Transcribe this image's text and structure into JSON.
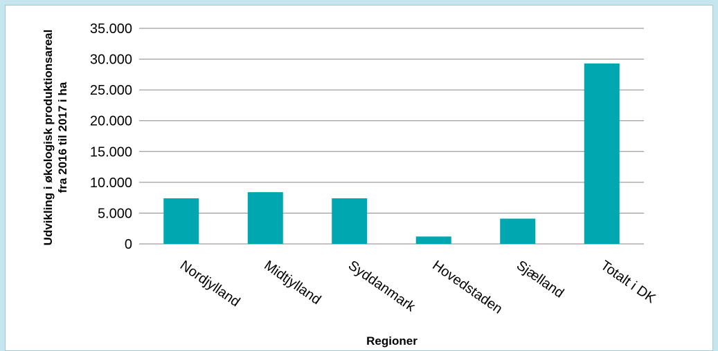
{
  "chart_data": {
    "type": "bar",
    "title": "",
    "xlabel": "Regioner",
    "ylabel_lines": [
      "Udvikling i økologisk produktionsareal",
      "fra 2016 til 2017 i ha"
    ],
    "categories": [
      "Nordjylland",
      "Midtjylland",
      "Syddanmark",
      "Hovedstaden",
      "Sjælland",
      "Totalt i DK"
    ],
    "values": [
      7400,
      8400,
      7400,
      1200,
      4100,
      29300
    ],
    "ylim": [
      0,
      35000
    ],
    "yticks": [
      0,
      5000,
      10000,
      15000,
      20000,
      25000,
      30000,
      35000
    ],
    "ytick_labels": [
      "0",
      "5.000",
      "10.000",
      "15.000",
      "20.000",
      "25.000",
      "30.000",
      "35.000"
    ],
    "grid": true,
    "legend": "none",
    "colors": {
      "bar": "#00a7b1",
      "grid": "#868686",
      "frame_background": "#c5e6ee"
    }
  }
}
